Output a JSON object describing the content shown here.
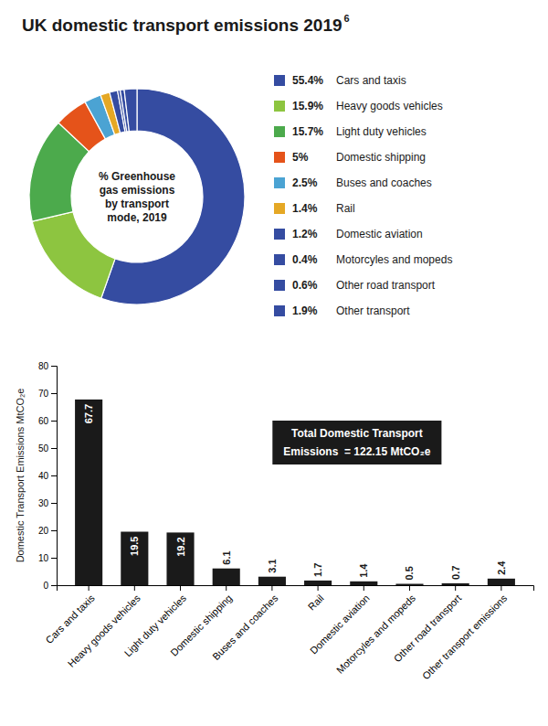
{
  "chart_data": [
    {
      "type": "pie",
      "title": "UK domestic transport emissions 2019",
      "annotations": [
        "6",
        "% Greenhouse\ngas emissions\nby transport\nmode, 2019"
      ],
      "categories": [
        "Cars and taxis",
        "Heavy goods vehicles",
        "Light duty vehicles",
        "Domestic shipping",
        "Buses and coaches",
        "Rail",
        "Domestic aviation",
        "Motorcyles and mopeds",
        "Other road transport",
        "Other transport"
      ],
      "values": [
        55.4,
        15.9,
        15.7,
        5.0,
        2.5,
        1.4,
        1.2,
        0.4,
        0.6,
        1.9
      ],
      "value_labels": [
        "55.4%",
        "15.9%",
        "15.7%",
        "5%",
        "2.5%",
        "1.4%",
        "1.2%",
        "0.4%",
        "0.6%",
        "1.9%"
      ],
      "colors": [
        "#354ca1",
        "#8dc540",
        "#4caa4c",
        "#e5531a",
        "#4ba3d3",
        "#e5a825",
        "#354ca1",
        "#354ca1",
        "#354ca1",
        "#354ca1"
      ],
      "data_labels": true,
      "legend": "right"
    },
    {
      "type": "bar",
      "categories": [
        "Cars and taxis",
        "Heavy goods vehicles",
        "Light duty vehicles",
        "Domestic shipping",
        "Buses and coaches",
        "Rail",
        "Domestic aviation",
        "Motorcyles and mopeds",
        "Other road transport",
        "Other transport emissions"
      ],
      "values": [
        67.7,
        19.5,
        19.2,
        6.1,
        3.1,
        1.7,
        1.4,
        0.5,
        0.7,
        2.4
      ],
      "color": "#1a1a1a",
      "ylabel": "Domestic Transport Emissions MtCO₂e",
      "ylim": [
        0,
        80
      ],
      "yticks": [
        0,
        10,
        20,
        30,
        40,
        50,
        60,
        70,
        80
      ],
      "grid": false,
      "data_labels": true,
      "annotations": [
        "Total Domestic Transport",
        "Emissions  = 122.15 MtCO₂e"
      ]
    }
  ]
}
